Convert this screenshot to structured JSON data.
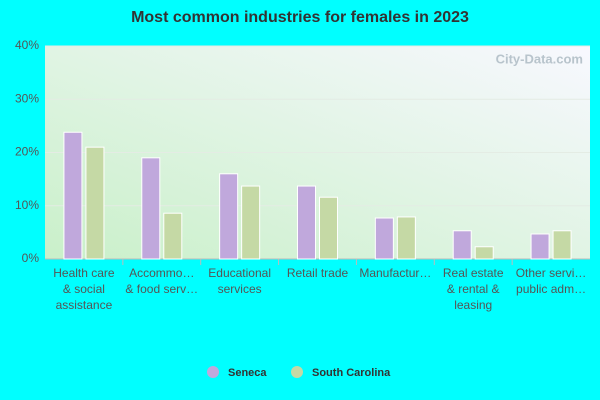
{
  "chart_data": {
    "type": "bar",
    "title": "Most common industries for females in 2023",
    "watermark": "City-Data.com",
    "categories": [
      [
        "Health care",
        "& social",
        "assistance"
      ],
      [
        "Accommo…",
        "& food serv…"
      ],
      [
        "Educational",
        "services"
      ],
      [
        "Retail trade"
      ],
      [
        "Manufactur…"
      ],
      [
        "Real estate",
        "& rental &",
        "leasing"
      ],
      [
        "Other servi…",
        "public adm…"
      ]
    ],
    "series": [
      {
        "name": "Seneca",
        "color": "#c0a8dc",
        "values": [
          23.8,
          19.0,
          16.0,
          13.7,
          7.7,
          5.3,
          4.7
        ]
      },
      {
        "name": "South Carolina",
        "color": "#c5d9a5",
        "values": [
          21.0,
          8.6,
          13.7,
          11.6,
          7.9,
          2.3,
          5.3
        ]
      }
    ],
    "ylim": [
      0,
      40
    ],
    "yticks": [
      {
        "value": 0,
        "label": "0%"
      },
      {
        "value": 10,
        "label": "10%"
      },
      {
        "value": 20,
        "label": "20%"
      },
      {
        "value": 30,
        "label": "30%"
      },
      {
        "value": 40,
        "label": "40%"
      }
    ],
    "grid": true
  }
}
